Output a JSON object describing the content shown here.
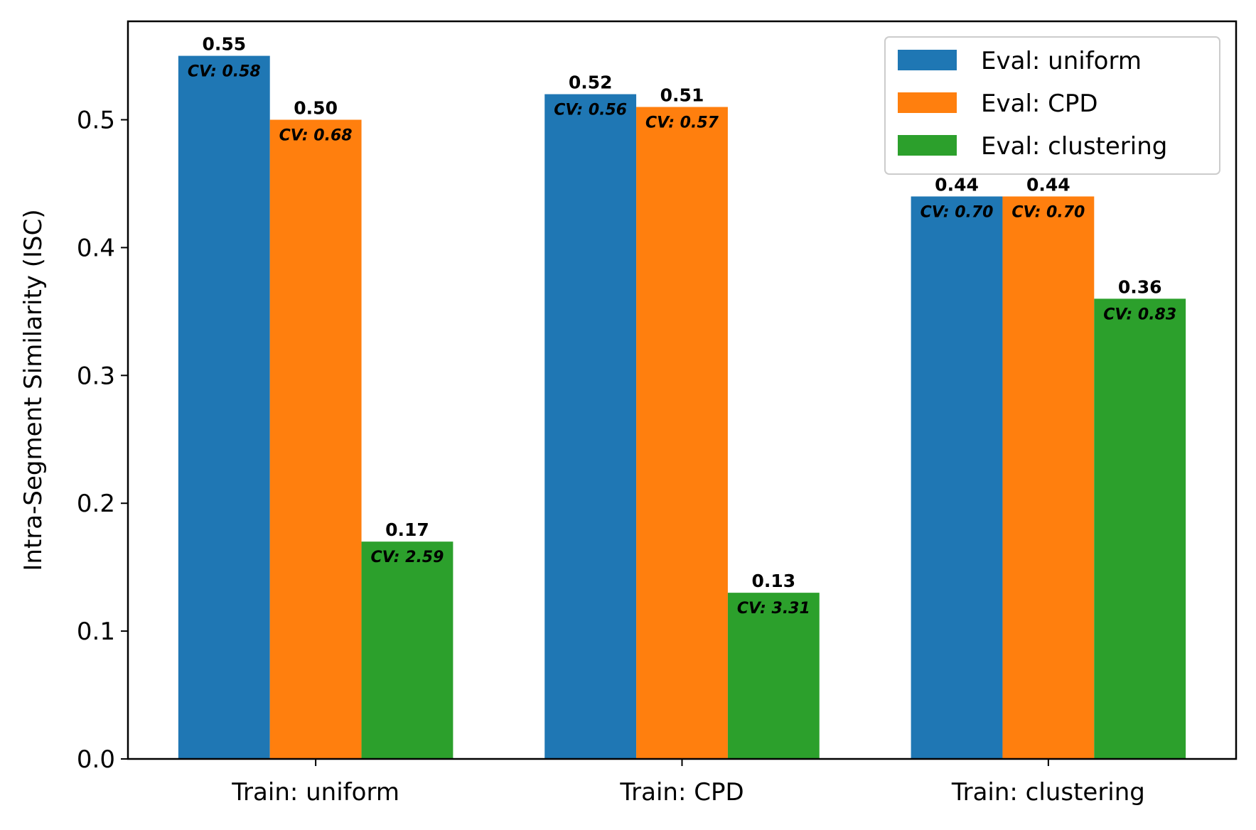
{
  "chart_data": {
    "type": "bar",
    "title": "",
    "xlabel": "",
    "ylabel": "Intra-Segment Similarity (ISC)",
    "categories": [
      "Train: uniform",
      "Train: CPD",
      "Train: clustering"
    ],
    "series": [
      {
        "name": "Eval: uniform",
        "color": "#1f77b4",
        "values": [
          0.55,
          0.52,
          0.44
        ],
        "value_labels": [
          "0.55",
          "0.52",
          "0.44"
        ],
        "cv_labels": [
          "CV: 0.58",
          "CV: 0.56",
          "CV: 0.70"
        ]
      },
      {
        "name": "Eval: CPD",
        "color": "#ff7f0e",
        "values": [
          0.5,
          0.51,
          0.44
        ],
        "value_labels": [
          "0.50",
          "0.51",
          "0.44"
        ],
        "cv_labels": [
          "CV: 0.68",
          "CV: 0.57",
          "CV: 0.70"
        ]
      },
      {
        "name": "Eval: clustering",
        "color": "#2ca02c",
        "values": [
          0.17,
          0.13,
          0.36
        ],
        "value_labels": [
          "0.17",
          "0.13",
          "0.36"
        ],
        "cv_labels": [
          "CV: 2.59",
          "CV: 3.31",
          "CV: 0.83"
        ]
      }
    ],
    "ylim": [
      0,
      0.577
    ],
    "yticks": [
      "0.0",
      "0.1",
      "0.2",
      "0.3",
      "0.4",
      "0.5"
    ],
    "grid": false,
    "legend_position": "top-right"
  }
}
